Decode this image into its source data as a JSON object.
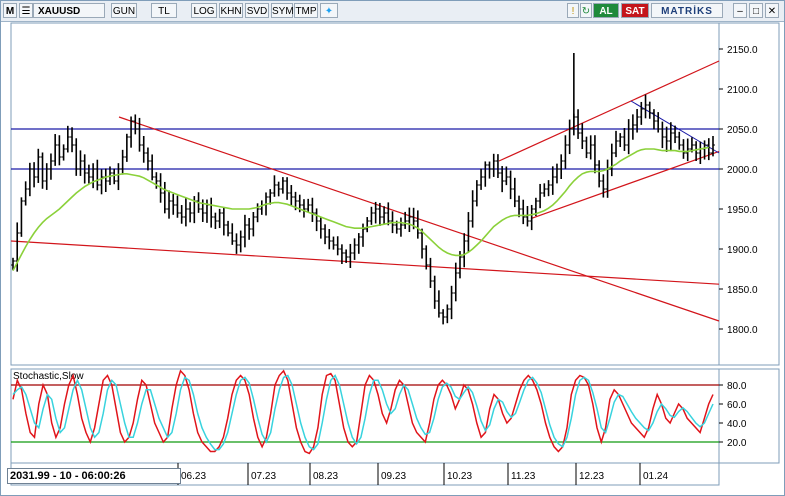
{
  "toolbar": {
    "m": "M",
    "symbol": "XAUUSD",
    "period": "GUN",
    "currency": "TL",
    "buttons": [
      "LOG",
      "KHN",
      "SVD",
      "SYM",
      "TMP"
    ],
    "al": "AL",
    "sat": "SAT",
    "brand": "MATRİKS"
  },
  "status": "2031.99 - 10 - 06:00:26",
  "indicator_title": "Stochastic,Slow",
  "chart_data": [
    {
      "type": "candlestick",
      "title": "XAUUSD",
      "ylim": [
        1770,
        2180
      ],
      "y_ticks": [
        1800,
        1850,
        1900,
        1950,
        2000,
        2050,
        2100,
        2150
      ],
      "x_ticks": [
        "06.23",
        "07.23",
        "08.23",
        "09.23",
        "10.23",
        "11.23",
        "12.23",
        "01.24"
      ],
      "close": [
        1885,
        1920,
        1960,
        1975,
        2000,
        1990,
        2015,
        1985,
        2000,
        2010,
        2030,
        2015,
        2025,
        2040,
        2030,
        2000,
        2010,
        1995,
        1990,
        2000,
        1980,
        1990,
        1985,
        1995,
        1985,
        2000,
        2015,
        2040,
        2060,
        2050,
        2030,
        2020,
        2010,
        1990,
        1985,
        1970,
        1950,
        1960,
        1955,
        1945,
        1940,
        1950,
        1945,
        1960,
        1950,
        1945,
        1955,
        1940,
        1935,
        1945,
        1930,
        1920,
        1910,
        1905,
        1915,
        1930,
        1925,
        1940,
        1950,
        1955,
        1965,
        1970,
        1980,
        1975,
        1985,
        1970,
        1965,
        1960,
        1955,
        1950,
        1955,
        1945,
        1935,
        1925,
        1915,
        1910,
        1905,
        1900,
        1895,
        1890,
        1895,
        1905,
        1915,
        1925,
        1935,
        1945,
        1950,
        1940,
        1945,
        1935,
        1930,
        1925,
        1930,
        1935,
        1940,
        1935,
        1920,
        1900,
        1880,
        1860,
        1835,
        1820,
        1815,
        1825,
        1845,
        1870,
        1890,
        1910,
        1935,
        1960,
        1980,
        1990,
        2005,
        2000,
        2010,
        1995,
        1985,
        1990,
        1975,
        1960,
        1950,
        1940,
        1935,
        1950,
        1960,
        1970,
        1975,
        1980,
        1990,
        2000,
        2010,
        2030,
        2050,
        2065,
        2045,
        2035,
        2020,
        2030,
        2005,
        1985,
        1975,
        2000,
        2020,
        2035,
        2040,
        2030,
        2050,
        2055,
        2065,
        2075,
        2080,
        2070,
        2060,
        2050,
        2040,
        2035,
        2045,
        2040,
        2030,
        2020,
        2025,
        2030,
        2020,
        2025,
        2030,
        2020,
        2030
      ],
      "ma": [
        1873,
        1883,
        1893,
        1903,
        1912,
        1920,
        1927,
        1933,
        1938,
        1942,
        1946,
        1950,
        1955,
        1960,
        1965,
        1970,
        1974,
        1978,
        1981,
        1984,
        1986,
        1988,
        1990,
        1991,
        1992,
        1993,
        1994,
        1994,
        1993,
        1992,
        1991,
        1989,
        1986,
        1983,
        1980,
        1977,
        1974,
        1972,
        1970,
        1968,
        1966,
        1964,
        1962,
        1960,
        1958,
        1957,
        1956,
        1955,
        1954,
        1953,
        1952,
        1951,
        1950,
        1950,
        1950,
        1950,
        1950,
        1951,
        1952,
        1954,
        1956,
        1957,
        1958,
        1958,
        1957,
        1956,
        1954,
        1952,
        1950,
        1948,
        1946,
        1944,
        1942,
        1940,
        1938,
        1936,
        1934,
        1932,
        1930,
        1928,
        1927,
        1926,
        1926,
        1926,
        1927,
        1928,
        1929,
        1930,
        1931,
        1932,
        1933,
        1933,
        1933,
        1932,
        1931,
        1929,
        1926,
        1922,
        1917,
        1912,
        1907,
        1902,
        1898,
        1895,
        1893,
        1892,
        1892,
        1893,
        1896,
        1900,
        1905,
        1910,
        1916,
        1922,
        1928,
        1932,
        1936,
        1939,
        1941,
        1942,
        1942,
        1942,
        1942,
        1943,
        1944,
        1946,
        1948,
        1951,
        1955,
        1960,
        1966,
        1972,
        1979,
        1985,
        1990,
        1994,
        1996,
        1997,
        1997,
        1997,
        1998,
        2000,
        2003,
        2006,
        2010,
        2013,
        2016,
        2019,
        2022,
        2024,
        2025,
        2025,
        2025,
        2024,
        2023,
        2023,
        2023,
        2023,
        2022,
        2022,
        2022,
        2023,
        2024,
        2025,
        2026,
        2027
      ],
      "hlines": [
        2050,
        2000
      ]
    },
    {
      "type": "line",
      "title": "Stochastic,Slow",
      "ylim": [
        0,
        100
      ],
      "y_ticks": [
        20,
        40,
        60,
        80
      ],
      "levels": [
        80,
        20
      ],
      "series": [
        {
          "name": "%K",
          "values": [
            65,
            85,
            75,
            50,
            30,
            25,
            60,
            80,
            70,
            40,
            25,
            35,
            60,
            80,
            90,
            70,
            45,
            30,
            20,
            35,
            60,
            85,
            90,
            80,
            55,
            30,
            20,
            25,
            40,
            65,
            85,
            80,
            60,
            40,
            30,
            20,
            25,
            55,
            80,
            95,
            90,
            75,
            50,
            30,
            20,
            15,
            10,
            10,
            15,
            25,
            45,
            70,
            85,
            90,
            85,
            70,
            45,
            25,
            15,
            25,
            50,
            80,
            90,
            95,
            85,
            60,
            35,
            20,
            10,
            8,
            15,
            35,
            70,
            90,
            92,
            85,
            60,
            35,
            20,
            15,
            20,
            50,
            80,
            90,
            85,
            70,
            50,
            40,
            55,
            75,
            85,
            80,
            60,
            40,
            30,
            25,
            20,
            40,
            65,
            80,
            85,
            80,
            70,
            55,
            65,
            80,
            75,
            60,
            40,
            25,
            30,
            55,
            70,
            65,
            50,
            40,
            45,
            60,
            75,
            85,
            90,
            85,
            75,
            60,
            40,
            25,
            15,
            10,
            15,
            35,
            70,
            85,
            90,
            88,
            80,
            60,
            35,
            20,
            35,
            65,
            75,
            70,
            60,
            50,
            40,
            35,
            30,
            25,
            35,
            55,
            70,
            60,
            45,
            40,
            50,
            60,
            55,
            45,
            40,
            35,
            30,
            45,
            60,
            70
          ]
        },
        {
          "name": "%D",
          "values": [
            70,
            75,
            78,
            70,
            55,
            40,
            35,
            55,
            70,
            65,
            45,
            30,
            35,
            55,
            75,
            85,
            75,
            55,
            35,
            25,
            30,
            50,
            75,
            85,
            80,
            60,
            40,
            25,
            25,
            40,
            60,
            75,
            75,
            60,
            45,
            35,
            25,
            30,
            50,
            75,
            88,
            85,
            70,
            50,
            35,
            25,
            18,
            12,
            12,
            18,
            30,
            50,
            70,
            85,
            88,
            82,
            65,
            45,
            28,
            20,
            30,
            55,
            75,
            88,
            90,
            80,
            60,
            40,
            25,
            15,
            12,
            18,
            40,
            65,
            85,
            90,
            80,
            60,
            40,
            25,
            18,
            25,
            45,
            70,
            85,
            85,
            75,
            60,
            50,
            55,
            70,
            80,
            75,
            60,
            45,
            35,
            28,
            30,
            45,
            65,
            78,
            82,
            78,
            68,
            65,
            72,
            78,
            72,
            58,
            42,
            32,
            38,
            55,
            65,
            62,
            52,
            46,
            50,
            62,
            75,
            85,
            88,
            82,
            72,
            55,
            38,
            25,
            18,
            15,
            25,
            45,
            70,
            85,
            88,
            85,
            72,
            55,
            35,
            30,
            45,
            62,
            70,
            68,
            60,
            52,
            45,
            40,
            35,
            32,
            40,
            52,
            60,
            55,
            48,
            46,
            52,
            56,
            52,
            46,
            40,
            36,
            40,
            50,
            60
          ]
        }
      ]
    }
  ]
}
